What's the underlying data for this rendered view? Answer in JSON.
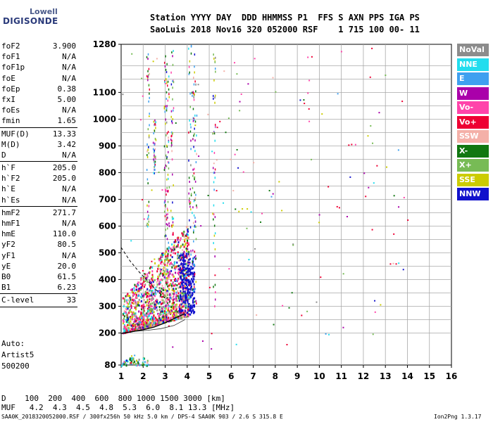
{
  "logo": {
    "line1": "Lowell",
    "line2": "DIGISONDE"
  },
  "header": {
    "row1": "Station YYYY DAY  DDD HHMMSS P1  FFS S AXN PPS IGA PS",
    "row2": "SaoLuis 2018 Nov16 320 052000 RSF    1 715 100 00- 11"
  },
  "params": [
    {
      "k": "foF2",
      "v": "3.900"
    },
    {
      "k": "foF1",
      "v": "N/A"
    },
    {
      "k": "foF1p",
      "v": "N/A"
    },
    {
      "k": "foE",
      "v": "N/A"
    },
    {
      "k": "foEp",
      "v": "0.38"
    },
    {
      "k": "fxI",
      "v": "5.00"
    },
    {
      "k": "foEs",
      "v": "N/A"
    },
    {
      "k": "fmin",
      "v": "1.65"
    },
    {
      "sep": true
    },
    {
      "k": "MUF(D)",
      "v": "13.33"
    },
    {
      "k": "M(D)",
      "v": "3.42"
    },
    {
      "k": "D",
      "v": "N/A"
    },
    {
      "sep": true
    },
    {
      "k": "h`F",
      "v": "205.0"
    },
    {
      "k": "h`F2",
      "v": "205.0"
    },
    {
      "k": "h`E",
      "v": "N/A"
    },
    {
      "k": "h`Es",
      "v": "N/A"
    },
    {
      "sep": true
    },
    {
      "k": "hmF2",
      "v": "271.7"
    },
    {
      "k": "hmF1",
      "v": "N/A"
    },
    {
      "k": "hmE",
      "v": "110.0"
    },
    {
      "k": "yF2",
      "v": "80.5"
    },
    {
      "k": "yF1",
      "v": "N/A"
    },
    {
      "k": "yE",
      "v": "20.0"
    },
    {
      "k": "B0",
      "v": "61.5"
    },
    {
      "k": "B1",
      "v": "6.23"
    },
    {
      "sep": true
    },
    {
      "k": "C-level",
      "v": "33"
    },
    {
      "sep": true
    }
  ],
  "auto": {
    "line1": "Auto:",
    "line2": "Artist5",
    "line3": "500200"
  },
  "legend": [
    {
      "label": "NoVal",
      "color": "#8c8c8c"
    },
    {
      "label": "NNE",
      "color": "#22ddee"
    },
    {
      "label": "E",
      "color": "#3fa0f0"
    },
    {
      "label": "W",
      "color": "#aa00aa"
    },
    {
      "label": "Vo-",
      "color": "#ff44aa"
    },
    {
      "label": "Vo+",
      "color": "#ee0033"
    },
    {
      "label": "SSW",
      "color": "#f4b0a8"
    },
    {
      "label": "X-",
      "color": "#117711"
    },
    {
      "label": "X+",
      "color": "#77bb55"
    },
    {
      "label": "SSE",
      "color": "#cccc00"
    },
    {
      "label": "NNW",
      "color": "#1111cc"
    }
  ],
  "bottom": {
    "d_row": "D    100  200  400  600  800 1000 1500 3000 [km]",
    "muf_row": "MUF   4.2  4.3  4.5  4.8  5.3  6.0  8.1 13.3 [MHz]"
  },
  "footer": {
    "left": "SAA0K_2018320052000.RSF / 300fx256h 50 kHz 5.0 km / DPS-4 SAA0K 903 / 2.6 S 315.8 E",
    "right": "Ion2Png 1.3.17"
  },
  "chart_data": {
    "type": "scatter",
    "xlim": [
      1,
      16
    ],
    "ylim": [
      80,
      1280
    ],
    "x_ticks": [
      1,
      2,
      3,
      4,
      5,
      6,
      7,
      8,
      9,
      10,
      11,
      12,
      13,
      14,
      15,
      16
    ],
    "y_ticks": [
      80,
      200,
      300,
      400,
      500,
      600,
      700,
      800,
      900,
      1000,
      1100,
      1280
    ],
    "y_grid": [
      80,
      200,
      250,
      300,
      350,
      400,
      450,
      500,
      550,
      600,
      650,
      700,
      750,
      800,
      850,
      900,
      950,
      1000,
      1050,
      1100,
      1150,
      1200,
      1280
    ],
    "profile_curve": {
      "x": [
        1.0,
        1.5,
        2.0,
        2.5,
        3.0,
        3.5,
        3.9
      ],
      "y": [
        198,
        205,
        212,
        222,
        238,
        258,
        272
      ]
    },
    "trace_curve": {
      "x": [
        1.65,
        2.2,
        2.8,
        3.4,
        3.9
      ],
      "y": [
        206,
        210,
        216,
        228,
        250
      ]
    },
    "dashed_curve": {
      "x": [
        1.0,
        1.4,
        1.8,
        2.2,
        2.6,
        3.0
      ],
      "y": [
        520,
        470,
        430,
        395,
        360,
        330
      ]
    }
  }
}
